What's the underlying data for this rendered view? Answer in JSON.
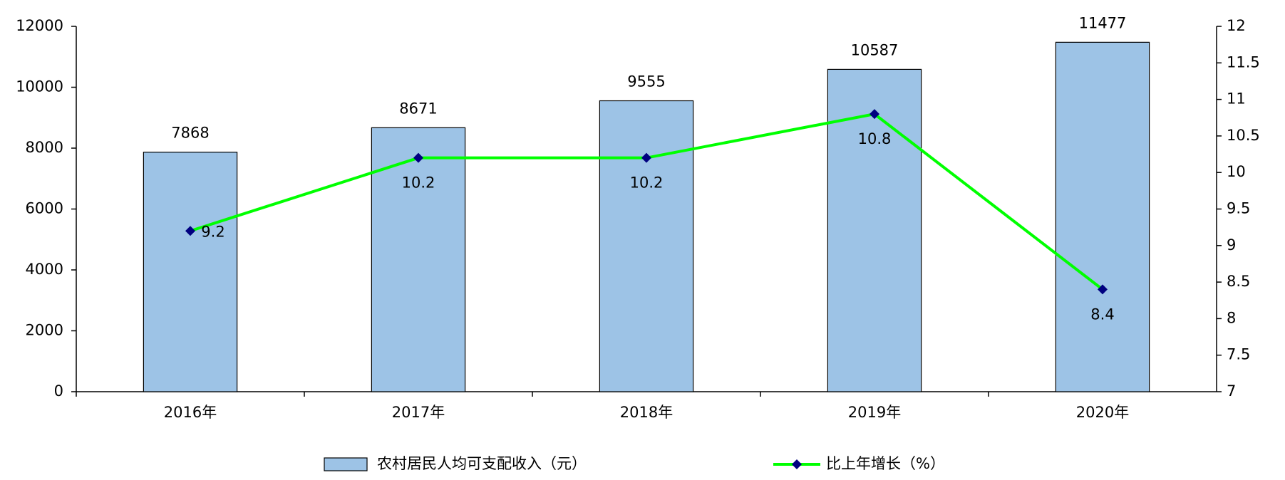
{
  "chart_data": {
    "type": "combo",
    "categories": [
      "2016年",
      "2017年",
      "2018年",
      "2019年",
      "2020年"
    ],
    "series": [
      {
        "name": "农村居民人均可支配收入（元）",
        "type": "bar",
        "color": "#9dc3e6",
        "values": [
          7868,
          8671,
          9555,
          10587,
          11477
        ]
      },
      {
        "name": "比上年增长（%）",
        "type": "line",
        "axis": "y2",
        "color": "#00ff00",
        "marker_color": "#000080",
        "values": [
          9.2,
          10.2,
          10.2,
          10.8,
          8.4
        ]
      }
    ],
    "ylim": [
      0,
      12000
    ],
    "yticks": [
      0,
      2000,
      4000,
      6000,
      8000,
      10000,
      12000
    ],
    "y2lim": [
      7,
      12
    ],
    "y2ticks": [
      7,
      7.5,
      8,
      8.5,
      9,
      9.5,
      10,
      10.5,
      11,
      11.5,
      12
    ],
    "legend": "bottom"
  }
}
